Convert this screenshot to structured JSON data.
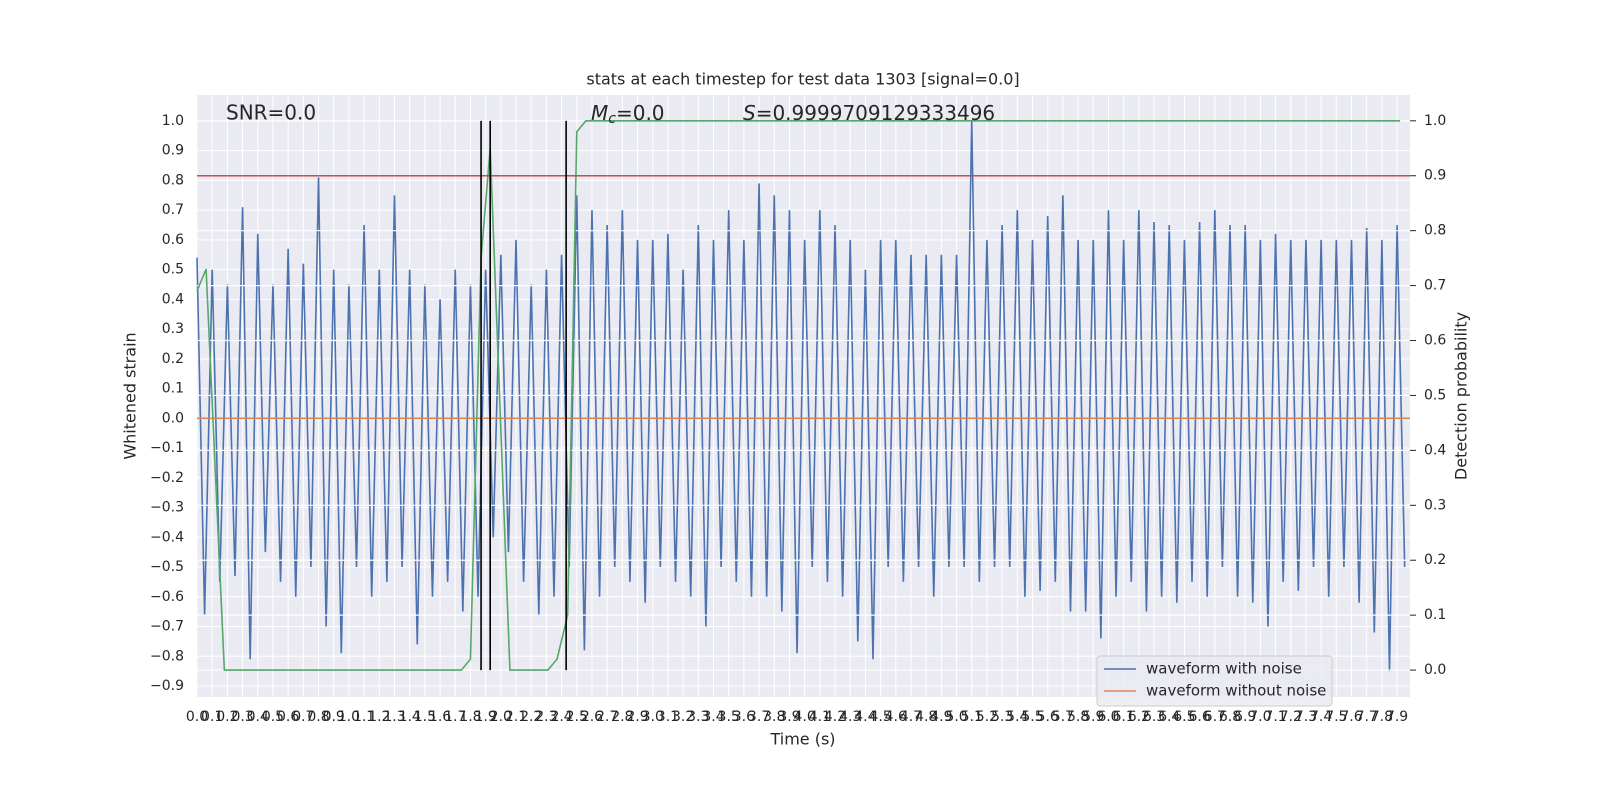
{
  "chart_data": {
    "type": "line",
    "title": "stats at each timestep for test data 1303 [signal=0.0]",
    "xlabel": "Time (s)",
    "ylabel": "Whitened strain",
    "y2label": "Detection probability",
    "annotations": {
      "snr": "SNR=0.0",
      "mc": {
        "symbol": "M",
        "subscript": "c",
        "text": "=0.0"
      },
      "s": {
        "symbol": "S",
        "text": "=0.9999709129333496"
      }
    },
    "xlim": [
      0,
      7.985
    ],
    "ylim": [
      -0.937,
      1.087
    ],
    "y2lim": [
      -0.049,
      1.047
    ],
    "grid": true,
    "legend": "lower right",
    "xticks": [
      {
        "value": 0,
        "label": "0.0"
      },
      0.1,
      0.2,
      0.3,
      0.4,
      0.5,
      0.6,
      0.7,
      0.8,
      0.9,
      {
        "value": 1,
        "label": "1.0"
      },
      1.1,
      1.2,
      1.3,
      1.4,
      1.5,
      1.6,
      1.7,
      1.8,
      1.9,
      {
        "value": 2,
        "label": "2.0"
      },
      2.1,
      2.2,
      2.3,
      2.4,
      2.5,
      2.6,
      2.7,
      2.8,
      2.9,
      {
        "value": 3,
        "label": "3.0"
      },
      3.1,
      3.2,
      3.3,
      3.4,
      3.5,
      3.6,
      3.7,
      3.8,
      3.9,
      {
        "value": 4,
        "label": "4.0"
      },
      4.1,
      4.2,
      4.3,
      4.4,
      4.5,
      4.6,
      4.7,
      4.8,
      4.9,
      {
        "value": 5,
        "label": "5.0"
      },
      5.1,
      5.2,
      5.3,
      5.4,
      5.5,
      5.6,
      5.7,
      5.8,
      5.9,
      {
        "value": 6,
        "label": "6.0"
      },
      6.1,
      6.2,
      6.3,
      6.4,
      6.5,
      6.6,
      6.7,
      6.8,
      6.9,
      {
        "value": 7,
        "label": "7.0"
      },
      7.1,
      7.2,
      7.3,
      7.4,
      7.5,
      7.6,
      7.7,
      7.8,
      7.9
    ],
    "yticks": [
      {
        "value": -0.9,
        "label": "−0.9"
      },
      {
        "value": -0.8,
        "label": "−0.8"
      },
      {
        "value": -0.7,
        "label": "−0.7"
      },
      {
        "value": -0.6,
        "label": "−0.6"
      },
      {
        "value": -0.5,
        "label": "−0.5"
      },
      {
        "value": -0.4,
        "label": "−0.4"
      },
      {
        "value": -0.3,
        "label": "−0.3"
      },
      {
        "value": -0.2,
        "label": "−0.2"
      },
      {
        "value": -0.1,
        "label": "−0.1"
      },
      {
        "value": 0,
        "label": "0.0"
      },
      0.1,
      0.2,
      0.3,
      0.4,
      0.5,
      0.6,
      0.7,
      0.8,
      0.9,
      {
        "value": 1,
        "label": "1.0"
      }
    ],
    "y2ticks": [
      {
        "value": 0,
        "label": "0.0"
      },
      0.1,
      0.2,
      0.3,
      0.4,
      0.5,
      0.6,
      0.7,
      0.8,
      0.9,
      {
        "value": 1,
        "label": "1.0"
      }
    ],
    "series": [
      {
        "name": "waveform with noise",
        "color": "#4c72b0",
        "x": [
          0,
          0.05,
          0.1,
          0.15,
          0.2,
          0.25,
          0.3,
          0.35,
          0.4,
          0.45,
          0.5,
          0.55,
          0.6,
          0.65,
          0.7,
          0.75,
          0.8,
          0.85,
          0.9,
          0.95,
          1,
          1.05,
          1.1,
          1.15,
          1.2,
          1.25,
          1.3,
          1.35,
          1.4,
          1.45,
          1.5,
          1.55,
          1.6,
          1.65,
          1.7,
          1.75,
          1.8,
          1.85,
          1.9,
          1.95,
          2,
          2.05,
          2.1,
          2.15,
          2.2,
          2.25,
          2.3,
          2.35,
          2.4,
          2.45,
          2.5,
          2.55,
          2.6,
          2.65,
          2.7,
          2.75,
          2.8,
          2.85,
          2.9,
          2.95,
          3,
          3.05,
          3.1,
          3.15,
          3.2,
          3.25,
          3.3,
          3.35,
          3.4,
          3.45,
          3.5,
          3.55,
          3.6,
          3.65,
          3.7,
          3.75,
          3.8,
          3.85,
          3.9,
          3.95,
          4,
          4.05,
          4.1,
          4.15,
          4.2,
          4.25,
          4.3,
          4.35,
          4.4,
          4.45,
          4.5,
          4.55,
          4.6,
          4.65,
          4.7,
          4.75,
          4.8,
          4.85,
          4.9,
          4.95,
          5,
          5.05,
          5.1,
          5.15,
          5.2,
          5.25,
          5.3,
          5.35,
          5.4,
          5.45,
          5.5,
          5.55,
          5.6,
          5.65,
          5.7,
          5.75,
          5.8,
          5.85,
          5.9,
          5.95,
          6,
          6.05,
          6.1,
          6.15,
          6.2,
          6.25,
          6.3,
          6.35,
          6.4,
          6.45,
          6.5,
          6.55,
          6.6,
          6.65,
          6.7,
          6.75,
          6.8,
          6.85,
          6.9,
          6.95,
          7,
          7.05,
          7.1,
          7.15,
          7.2,
          7.25,
          7.3,
          7.35,
          7.4,
          7.45,
          7.5,
          7.55,
          7.6,
          7.65,
          7.7,
          7.75,
          7.8,
          7.85,
          7.9,
          7.95
        ],
        "values": [
          0.54,
          -0.66,
          0.5,
          -0.55,
          0.45,
          -0.53,
          0.71,
          -0.81,
          0.62,
          -0.45,
          0.45,
          -0.55,
          0.57,
          -0.6,
          0.52,
          -0.5,
          0.81,
          -0.7,
          0.5,
          -0.79,
          0.45,
          -0.5,
          0.65,
          -0.6,
          0.5,
          -0.55,
          0.75,
          -0.5,
          0.5,
          -0.76,
          0.45,
          -0.6,
          0.4,
          -0.55,
          0.5,
          -0.65,
          0.45,
          -0.6,
          0.5,
          -0.4,
          0.55,
          -0.45,
          0.6,
          -0.55,
          0.45,
          -0.66,
          0.5,
          -0.6,
          0.55,
          -0.5,
          0.75,
          -0.78,
          0.7,
          -0.6,
          0.65,
          -0.5,
          0.7,
          -0.55,
          0.6,
          -0.62,
          0.6,
          -0.5,
          0.62,
          -0.55,
          0.5,
          -0.6,
          0.65,
          -0.7,
          0.6,
          -0.5,
          0.7,
          -0.55,
          0.6,
          -0.6,
          0.79,
          -0.6,
          0.75,
          -0.65,
          0.7,
          -0.79,
          0.6,
          -0.5,
          0.7,
          -0.55,
          0.65,
          -0.6,
          0.6,
          -0.75,
          0.5,
          -0.81,
          0.6,
          -0.5,
          0.6,
          -0.55,
          0.55,
          -0.5,
          0.55,
          -0.6,
          0.55,
          -0.5,
          0.55,
          -0.5,
          1.0,
          -0.55,
          0.6,
          -0.5,
          0.65,
          -0.5,
          0.7,
          -0.6,
          0.6,
          -0.58,
          0.68,
          -0.55,
          0.75,
          -0.65,
          0.6,
          -0.65,
          0.6,
          -0.74,
          0.7,
          -0.6,
          0.6,
          -0.55,
          0.7,
          -0.65,
          0.66,
          -0.6,
          0.65,
          -0.62,
          0.6,
          -0.55,
          0.66,
          -0.6,
          0.7,
          -0.5,
          0.65,
          -0.6,
          0.65,
          -0.62,
          0.6,
          -0.7,
          0.62,
          -0.55,
          0.6,
          -0.58,
          0.6,
          -0.5,
          0.6,
          -0.6,
          0.6,
          -0.5,
          0.6,
          -0.62,
          0.64,
          -0.72,
          0.6,
          -0.85,
          0.65,
          -0.5
        ]
      },
      {
        "name": "waveform without noise",
        "color": "#dd8452",
        "x": [
          0,
          7.985
        ],
        "values": [
          0,
          0
        ]
      }
    ],
    "detection_probability": {
      "color": "#55a868",
      "axis": "y2",
      "x": [
        0,
        0.06,
        0.18,
        1.74,
        1.8,
        1.87,
        1.93,
        2.06,
        2.31,
        2.37,
        2.44,
        2.5,
        2.56,
        7.92
      ],
      "values": [
        0.69,
        0.73,
        0.0,
        0.0,
        0.02,
        0.75,
        0.95,
        0.0,
        0.0,
        0.02,
        0.1,
        0.98,
        1.0,
        1.0
      ]
    },
    "threshold": {
      "color": "#c44e52",
      "axis": "y2",
      "value": 0.9
    },
    "vlines": {
      "color": "#000000",
      "axis": "y2",
      "x": [
        1.87,
        1.93,
        2.43
      ],
      "y2range": [
        0,
        1
      ]
    }
  }
}
